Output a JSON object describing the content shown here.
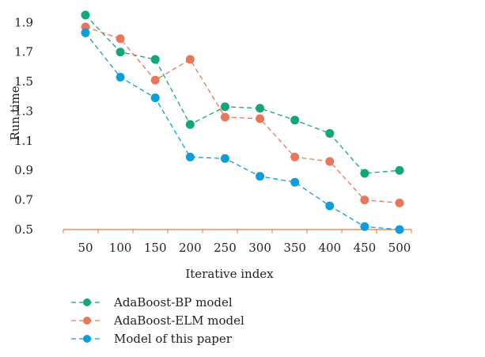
{
  "chart_data": {
    "type": "line",
    "title": "",
    "xlabel": "Iterative index",
    "ylabel": "Run time",
    "categories": [
      "50",
      "100",
      "150",
      "200",
      "250",
      "300",
      "350",
      "400",
      "450",
      "500"
    ],
    "y_ticks": [
      "0.5",
      "0.7",
      "0.9",
      "1.1",
      "1.3",
      "1.5",
      "1.7",
      "1.9"
    ],
    "ylim": [
      0.5,
      2.0
    ],
    "grid": false,
    "legend_position": "bottom",
    "series": [
      {
        "name": "AdaBoost-BP model",
        "color": "#13a67a",
        "values": [
          1.95,
          1.7,
          1.65,
          1.21,
          1.33,
          1.32,
          1.24,
          1.15,
          0.88,
          0.9
        ]
      },
      {
        "name": "AdaBoost-ELM model",
        "color": "#e8765a",
        "values": [
          1.87,
          1.79,
          1.51,
          1.65,
          1.26,
          1.25,
          0.99,
          0.96,
          0.7,
          0.68
        ]
      },
      {
        "name": "Model of this paper",
        "color": "#0b9ed9",
        "values": [
          1.83,
          1.53,
          1.39,
          0.99,
          0.98,
          0.86,
          0.82,
          0.66,
          0.52,
          0.5
        ]
      }
    ],
    "axis_color": "#e07b39"
  }
}
